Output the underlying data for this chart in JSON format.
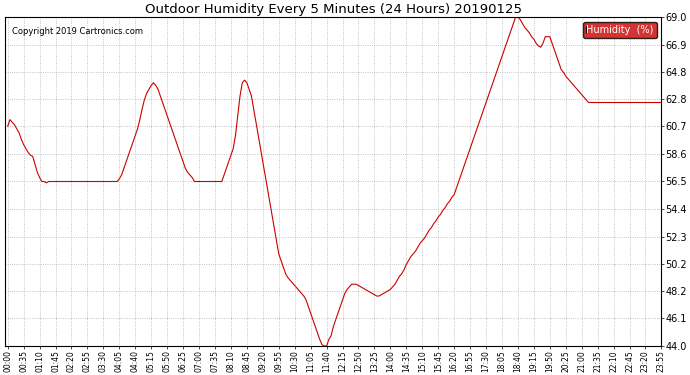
{
  "title": "Outdoor Humidity Every 5 Minutes (24 Hours) 20190125",
  "copyright": "Copyright 2019 Cartronics.com",
  "legend_label": "Humidity  (%)",
  "line_color": "#cc0000",
  "bg_color": "#ffffff",
  "plot_bg_color": "#ffffff",
  "grid_color": "#aaaaaa",
  "ylim": [
    44.0,
    69.0
  ],
  "yticks": [
    44.0,
    46.1,
    48.2,
    50.2,
    52.3,
    54.4,
    56.5,
    58.6,
    60.7,
    62.8,
    64.8,
    66.9,
    69.0
  ],
  "humidity_values": [
    60.7,
    61.2,
    61.0,
    60.8,
    60.5,
    60.2,
    59.7,
    59.3,
    59.0,
    58.7,
    58.5,
    58.4,
    57.8,
    57.2,
    56.8,
    56.5,
    56.5,
    56.4,
    56.5,
    56.5,
    56.5,
    56.5,
    56.5,
    56.5,
    56.5,
    56.5,
    56.5,
    56.5,
    56.5,
    56.5,
    56.5,
    56.5,
    56.5,
    56.5,
    56.5,
    56.5,
    56.5,
    56.5,
    56.5,
    56.5,
    56.5,
    56.5,
    56.5,
    56.5,
    56.5,
    56.5,
    56.5,
    56.5,
    56.5,
    56.7,
    57.0,
    57.5,
    58.0,
    58.5,
    59.0,
    59.5,
    60.0,
    60.5,
    61.2,
    62.0,
    62.7,
    63.2,
    63.5,
    63.8,
    64.0,
    63.8,
    63.5,
    63.0,
    62.5,
    62.0,
    61.5,
    61.0,
    60.5,
    60.0,
    59.5,
    59.0,
    58.5,
    58.0,
    57.5,
    57.2,
    57.0,
    56.8,
    56.5,
    56.5,
    56.5,
    56.5,
    56.5,
    56.5,
    56.5,
    56.5,
    56.5,
    56.5,
    56.5,
    56.5,
    56.5,
    57.0,
    57.5,
    58.0,
    58.5,
    59.0,
    60.0,
    61.5,
    63.0,
    64.0,
    64.2,
    64.0,
    63.5,
    63.0,
    62.0,
    61.0,
    60.0,
    59.0,
    58.0,
    57.0,
    56.0,
    55.0,
    54.0,
    53.0,
    52.0,
    51.0,
    50.5,
    50.0,
    49.5,
    49.2,
    49.0,
    48.8,
    48.6,
    48.4,
    48.2,
    48.0,
    47.8,
    47.5,
    47.0,
    46.5,
    46.0,
    45.5,
    45.0,
    44.5,
    44.1,
    44.0,
    44.0,
    44.5,
    44.8,
    45.5,
    46.0,
    46.5,
    47.0,
    47.5,
    48.0,
    48.3,
    48.5,
    48.7,
    48.7,
    48.7,
    48.6,
    48.5,
    48.4,
    48.3,
    48.2,
    48.1,
    48.0,
    47.9,
    47.8,
    47.8,
    47.9,
    48.0,
    48.1,
    48.2,
    48.3,
    48.5,
    48.7,
    49.0,
    49.3,
    49.5,
    49.8,
    50.2,
    50.5,
    50.8,
    51.0,
    51.2,
    51.5,
    51.8,
    52.0,
    52.2,
    52.5,
    52.8,
    53.0,
    53.3,
    53.5,
    53.8,
    54.0,
    54.3,
    54.5,
    54.8,
    55.0,
    55.3,
    55.5,
    56.0,
    56.5,
    57.0,
    57.5,
    58.0,
    58.5,
    59.0,
    59.5,
    60.0,
    60.5,
    61.0,
    61.5,
    62.0,
    62.5,
    63.0,
    63.5,
    64.0,
    64.5,
    65.0,
    65.5,
    66.0,
    66.5,
    67.0,
    67.5,
    68.0,
    68.5,
    69.0,
    69.0,
    68.8,
    68.5,
    68.2,
    68.0,
    67.8,
    67.5,
    67.3,
    67.0,
    66.8,
    66.7,
    67.0,
    67.5,
    67.5,
    67.5,
    67.0,
    66.5,
    66.0,
    65.5,
    65.0,
    64.8,
    64.5,
    64.3,
    64.1,
    63.9,
    63.7,
    63.5,
    63.3,
    63.1,
    62.9,
    62.7,
    62.5,
    62.5,
    62.5,
    62.5,
    62.5,
    62.5,
    62.5,
    62.5,
    62.5,
    62.5,
    62.5,
    62.5,
    62.5,
    62.5,
    62.5,
    62.5,
    62.5,
    62.5,
    62.5,
    62.5,
    62.5,
    62.5,
    62.5,
    62.5,
    62.5,
    62.5,
    62.5,
    62.5,
    62.5,
    62.5,
    62.5,
    62.5,
    62.5,
    62.5
  ]
}
